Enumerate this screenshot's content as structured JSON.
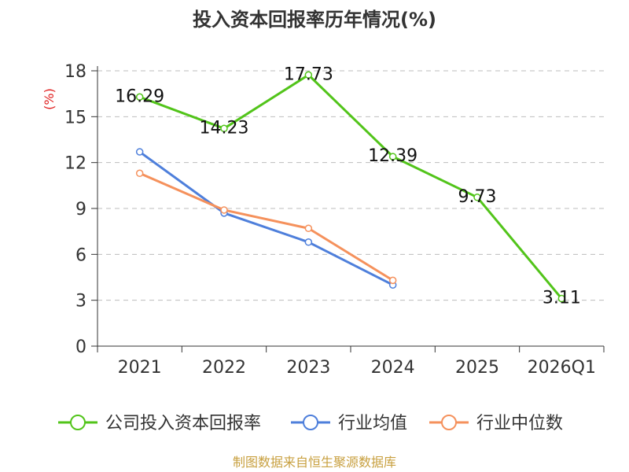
{
  "chart_data": {
    "type": "line",
    "title": "投入资本回报率历年情况(%)",
    "ylabel": "(%)",
    "xlabel": "",
    "categories": [
      "2021",
      "2022",
      "2023",
      "2024",
      "2025",
      "2026Q1"
    ],
    "ylim": [
      0,
      18
    ],
    "yticks": [
      0,
      3,
      6,
      9,
      12,
      15,
      18
    ],
    "grid": true,
    "legend_position": "bottom",
    "series": [
      {
        "name": "公司投入资本回报率",
        "color": "#52c41a",
        "values": [
          16.29,
          14.23,
          17.73,
          12.39,
          9.73,
          3.11
        ],
        "labels": [
          "16.29",
          "14.23",
          "17.73",
          "12.39",
          "9.73",
          "3.11"
        ],
        "show_labels": true
      },
      {
        "name": "行业均值",
        "color": "#4e7fdb",
        "values": [
          12.7,
          8.7,
          6.8,
          4.0,
          null,
          null
        ],
        "show_labels": false
      },
      {
        "name": "行业中位数",
        "color": "#f5915c",
        "values": [
          11.3,
          8.9,
          7.7,
          4.3,
          null,
          null
        ],
        "show_labels": false
      }
    ]
  },
  "footer": {
    "source": "制图数据来自恒生聚源数据库",
    "source_color": "#c8a040"
  },
  "colors": {
    "unit_label": "#e02020"
  }
}
